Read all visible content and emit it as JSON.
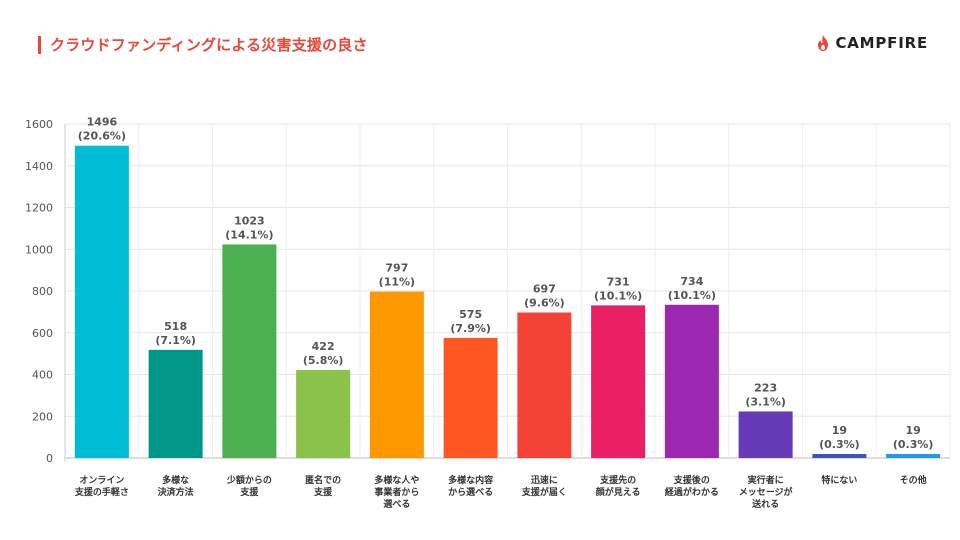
{
  "page": {
    "title": "クラウドファンディングによる災害支援の良さ",
    "logo_text": "CAMPFIRE",
    "accent_color": "#e8473a",
    "logo_icon": "flame-icon"
  },
  "chart_data": {
    "type": "bar",
    "categories": [
      "オンライン\n支援の手軽さ",
      "多様な\n決済方法",
      "少額からの\n支援",
      "匿名での\n支援",
      "多様な人や\n事業者から\n選べる",
      "多様な内容\nから選べる",
      "迅速に\n支援が届く",
      "支援先の\n顔が見える",
      "支援後の\n経過がわかる",
      "実行者に\nメッセージが\n送れる",
      "特にない",
      "その他"
    ],
    "values": [
      1496,
      518,
      1023,
      422,
      797,
      575,
      697,
      731,
      734,
      223,
      19,
      19
    ],
    "percent_labels": [
      "(20.6%)",
      "(7.1%)",
      "(14.1%)",
      "(5.8%)",
      "(11%)",
      "(7.9%)",
      "(9.6%)",
      "(10.1%)",
      "(10.1%)",
      "(3.1%)",
      "(0.3%)",
      "(0.3%)"
    ],
    "colors": [
      "#00bcd4",
      "#009688",
      "#4caf50",
      "#8bc34a",
      "#ff9800",
      "#ff5722",
      "#f44336",
      "#e91e63",
      "#9c27b0",
      "#673ab7",
      "#3f51b5",
      "#2196f3"
    ],
    "ylim": [
      0,
      1600
    ],
    "yticks": [
      0,
      200,
      400,
      600,
      800,
      1000,
      1200,
      1400,
      1600
    ],
    "grid": true,
    "legend": "none"
  }
}
